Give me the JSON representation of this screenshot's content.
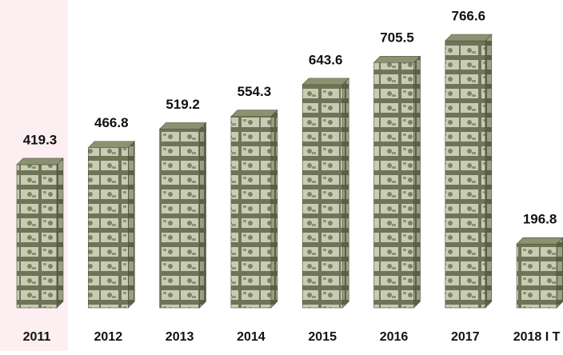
{
  "chart_data": {
    "type": "bar",
    "categories": [
      "2011",
      "2012",
      "2013",
      "2014",
      "2015",
      "2016",
      "2017",
      "2018 I T"
    ],
    "values": [
      419.3,
      466.8,
      519.2,
      554.3,
      643.6,
      705.5,
      766.6,
      196.8
    ],
    "color": "#8c9270"
  }
}
